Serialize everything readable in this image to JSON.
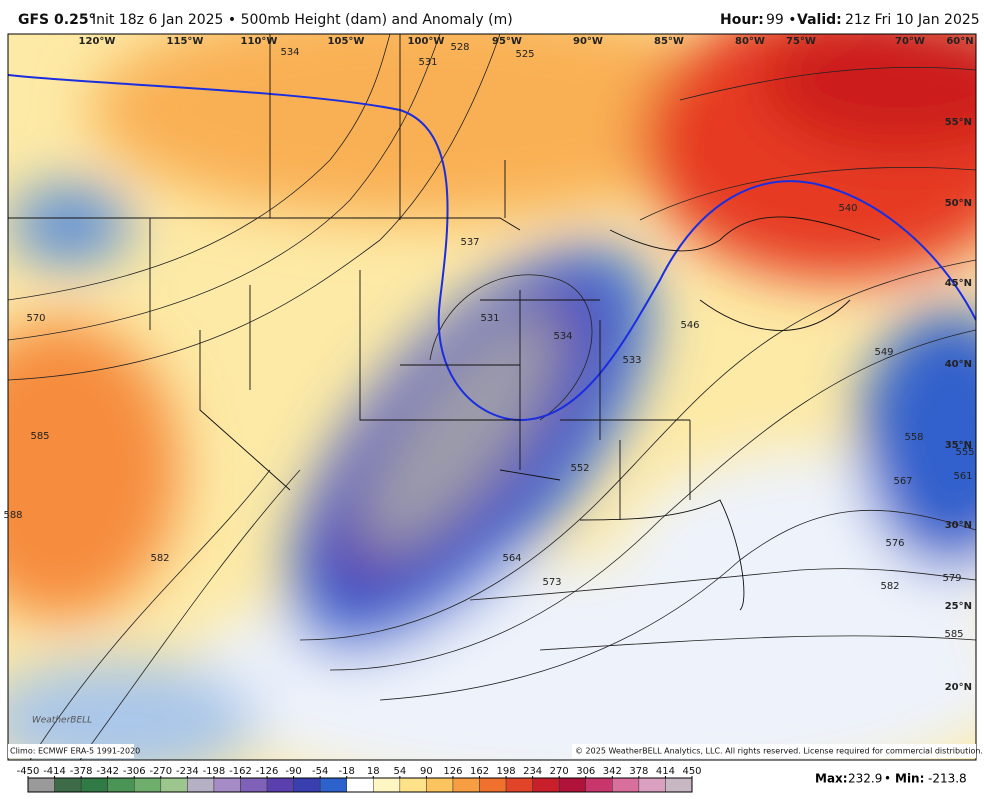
{
  "header": {
    "model": "GFS 0.25°",
    "subtitle": "Init 18z 6 Jan 2025 • 500mb Height (dam) and Anomaly (m)",
    "hour_label": "Hour:",
    "hour": "99 •",
    "valid_label": "Valid:",
    "valid": "21z Fri 10 Jan 2025"
  },
  "map": {
    "lon_labels": [
      "120°W",
      "115°W",
      "110°W",
      "105°W",
      "100°W",
      "95°W",
      "90°W",
      "85°W",
      "80°W",
      "75°W",
      "70°W",
      "60°N"
    ],
    "lat_labels": [
      "55°N",
      "50°N",
      "45°N",
      "40°N",
      "35°N",
      "30°N",
      "25°N",
      "20°N"
    ],
    "contour_labels": [
      534,
      531,
      528,
      525,
      537,
      531,
      534,
      533,
      546,
      540,
      549,
      570,
      585,
      588,
      582,
      552,
      564,
      573,
      558,
      555,
      561,
      567,
      576,
      579,
      582,
      585
    ],
    "logo": "WeatherBELL"
  },
  "footer": {
    "climo": "Climo: ECMWF ERA-5 1991-2020",
    "copyright": "© 2025 WeatherBELL Analytics, LLC. All rights reserved. License required for commercial distribution."
  },
  "colorbar": {
    "ticks": [
      -450,
      -414,
      -378,
      -342,
      -306,
      -270,
      -234,
      -198,
      -162,
      -126,
      -90,
      -54,
      -18,
      18,
      54,
      90,
      126,
      162,
      198,
      234,
      270,
      306,
      342,
      378,
      414,
      450
    ],
    "colors": [
      "#9a9a9a",
      "#3e6b47",
      "#2f7a45",
      "#4a9456",
      "#6fae6c",
      "#9cc68d",
      "#b6b0c4",
      "#a58cc6",
      "#7f62b8",
      "#5a3fae",
      "#3a3fb0",
      "#2d62cc",
      "#ffffff",
      "#fff6c4",
      "#fde28a",
      "#fbc45e",
      "#f89e42",
      "#f0712e",
      "#e2442a",
      "#c81f2a",
      "#b0123a",
      "#c8366c",
      "#d86f9c",
      "#d9a0c0",
      "#c8b8c4"
    ]
  },
  "stats": {
    "max_label": "Max:",
    "max": 232.9,
    "min_label": "Min:",
    "min": -213.8
  }
}
